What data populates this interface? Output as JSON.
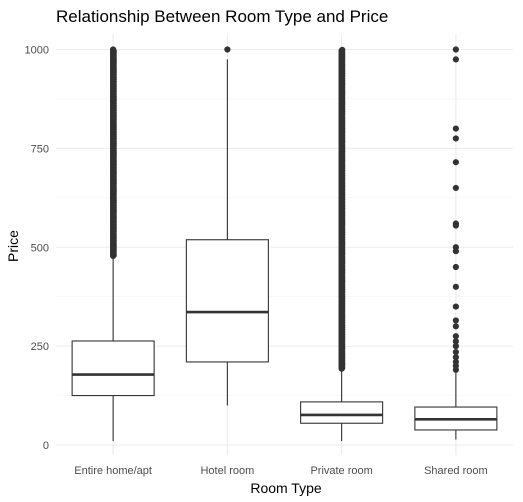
{
  "chart_data": {
    "type": "boxplot",
    "title": "Relationship Between Room Type and Price",
    "xlabel": "Room Type",
    "ylabel": "Price",
    "ylim": [
      -14,
      1000
    ],
    "yticks": [
      0,
      250,
      500,
      750,
      1000
    ],
    "grid": true,
    "categories": [
      "Entire home/apt",
      "Hotel room",
      "Private room",
      "Shared room"
    ],
    "boxes": [
      {
        "category": "Entire home/apt",
        "whisker_low": 10,
        "q1": 125,
        "median": 178,
        "q3": 263,
        "whisker_high": 475,
        "outliers_dense": [
          478,
          1000
        ]
      },
      {
        "category": "Hotel room",
        "whisker_low": 100,
        "q1": 210,
        "median": 336,
        "q3": 519,
        "whisker_high": 975,
        "outliers": [
          1000
        ]
      },
      {
        "category": "Private room",
        "whisker_low": 10,
        "q1": 55,
        "median": 76,
        "q3": 109,
        "whisker_high": 190,
        "outliers_dense": [
          193,
          1000
        ]
      },
      {
        "category": "Shared room",
        "whisker_low": 14,
        "q1": 38,
        "median": 65,
        "q3": 96,
        "whisker_high": 185,
        "outliers": [
          190,
          200,
          210,
          222,
          235,
          250,
          262,
          275,
          300,
          315,
          350,
          400,
          450,
          490,
          500,
          555,
          560,
          650,
          715,
          775,
          800,
          975,
          1000
        ]
      }
    ]
  }
}
